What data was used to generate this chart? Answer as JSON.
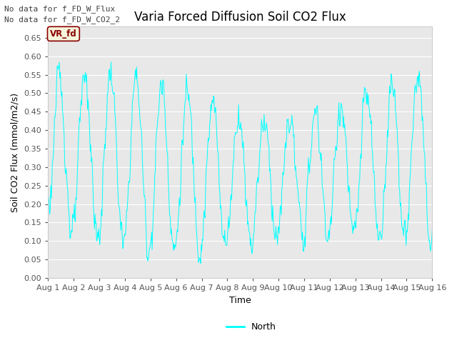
{
  "title": "Varia Forced Diffusion Soil CO2 Flux",
  "xlabel": "Time",
  "ylabel": "Soil CO2 Flux (mmol/m2/s)",
  "text_no_data_1": "No data for f_FD_W_Flux",
  "text_no_data_2": "No data for f_FD_W_CO2_2",
  "legend_label": "North",
  "legend_series_label": "VR_fd",
  "line_color": "#00FFFF",
  "ylim": [
    0.0,
    0.68
  ],
  "yticks": [
    0.0,
    0.05,
    0.1,
    0.15,
    0.2,
    0.25,
    0.3,
    0.35,
    0.4,
    0.45,
    0.5,
    0.55,
    0.6,
    0.65
  ],
  "fig_bg_color": "#FFFFFF",
  "plot_bg_color": "#E8E8E8",
  "grid_color": "#FFFFFF",
  "title_fontsize": 12,
  "label_fontsize": 9,
  "tick_fontsize": 8,
  "legend_box_color": "#F5F5DC",
  "legend_box_edge": "#8B0000",
  "legend_text_color": "#8B0000",
  "nodata_fontsize": 8,
  "nodata_color": "#404040"
}
